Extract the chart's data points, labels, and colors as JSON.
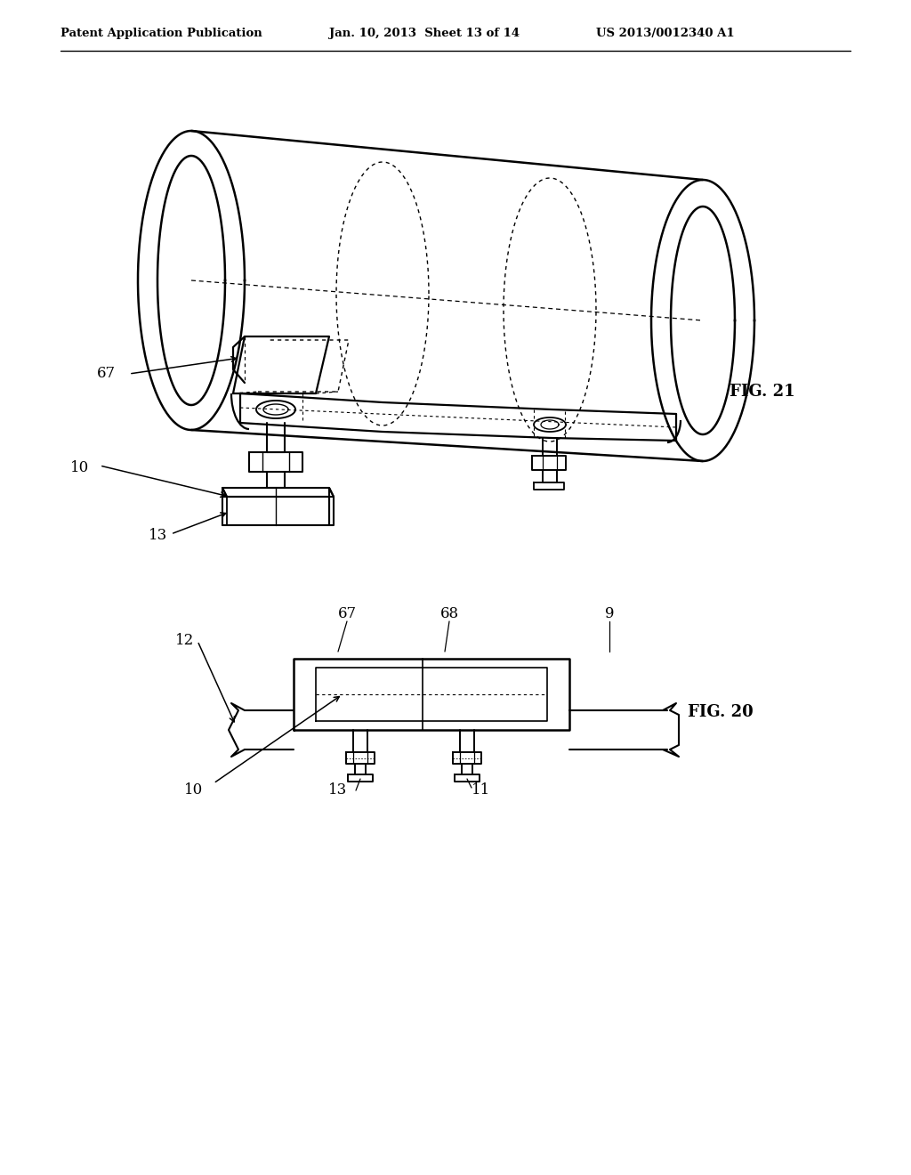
{
  "header_left": "Patent Application Publication",
  "header_mid": "Jan. 10, 2013  Sheet 13 of 14",
  "header_right": "US 2013/0012340 A1",
  "fig21_label": "FIG. 21",
  "fig20_label": "FIG. 20",
  "bg_color": "#ffffff",
  "line_color": "#000000",
  "labels": {
    "10_top": "10",
    "13_top": "13",
    "67_top": "67",
    "10_bot": "10",
    "12_bot": "12",
    "13_bot": "13",
    "11_bot": "11",
    "67_bot": "67",
    "68_bot": "68",
    "9_bot": "9"
  }
}
